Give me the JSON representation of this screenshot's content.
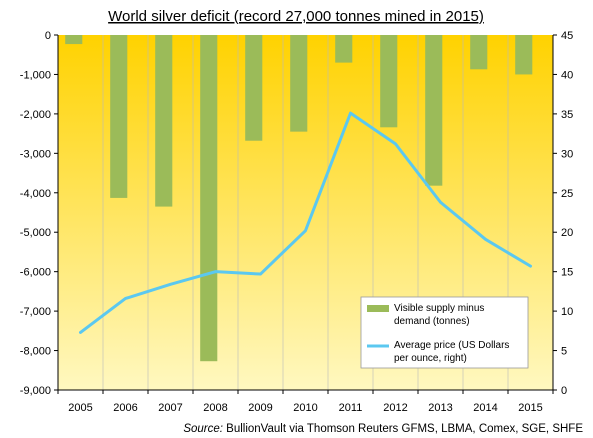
{
  "chart_data": {
    "type": "bar+line",
    "title": "World silver deficit (record 27,000 tonnes mined in 2015)",
    "categories": [
      "2005",
      "2006",
      "2007",
      "2008",
      "2009",
      "2010",
      "2011",
      "2012",
      "2013",
      "2014",
      "2015"
    ],
    "series": [
      {
        "name": "Visible supply minus demand (tonnes)",
        "type": "bar",
        "axis": "left",
        "color": "#9bbb59",
        "values": [
          -230,
          -4130,
          -4350,
          -8270,
          -2680,
          -2450,
          -700,
          -2340,
          -3820,
          -870,
          -1000
        ]
      },
      {
        "name": "Average price (US Dollars per ounce, right)",
        "type": "line",
        "axis": "right",
        "color": "#5bc8f0",
        "values": [
          7.3,
          11.6,
          13.4,
          15.0,
          14.7,
          20.2,
          35.1,
          31.2,
          23.8,
          19.1,
          15.7
        ]
      }
    ],
    "y_left": {
      "min": -9000,
      "max": 0,
      "step": 1000,
      "tick_labels": [
        "0",
        "-1,000",
        "-2,000",
        "-3,000",
        "-4,000",
        "-5,000",
        "-6,000",
        "-7,000",
        "-8,000",
        "-9,000"
      ]
    },
    "y_right": {
      "min": 0,
      "max": 45,
      "step": 5,
      "tick_labels": [
        "45",
        "40",
        "35",
        "30",
        "25",
        "20",
        "15",
        "10",
        "5",
        "0"
      ]
    },
    "legend": {
      "position": "bottom-right",
      "entries": [
        {
          "line1": "Visible supply minus",
          "line2": "demand (tonnes)"
        },
        {
          "line1": "Average price (US Dollars",
          "line2": "per ounce, right)"
        }
      ]
    },
    "source_prefix": "Source:",
    "source_text": " BullionVault via Thomson Reuters GFMS, LBMA, Comex, SGE, SHFE",
    "background_gradient": [
      "#ffd200",
      "#fff8c0"
    ]
  }
}
